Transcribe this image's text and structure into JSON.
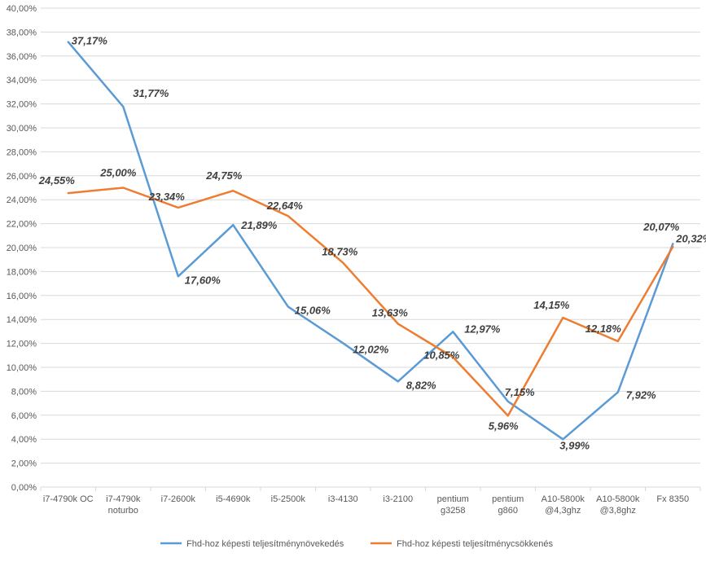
{
  "chart_data": {
    "type": "line",
    "categories": [
      [
        "i7-4790k OC"
      ],
      [
        "i7-4790k",
        "noturbo"
      ],
      [
        "i7-2600k"
      ],
      [
        "i5-4690k"
      ],
      [
        "i5-2500k"
      ],
      [
        "i3-4130"
      ],
      [
        "i3-2100"
      ],
      [
        "pentium",
        "g3258"
      ],
      [
        "pentium",
        "g860"
      ],
      [
        "A10-5800k",
        "@4,3ghz"
      ],
      [
        "A10-5800k",
        "@3,8ghz"
      ],
      [
        "Fx 8350"
      ]
    ],
    "series": [
      {
        "name": "Fhd-hoz képesti teljesítménynövekedés",
        "color": "#5B9BD5",
        "values": [
          37.17,
          31.77,
          17.6,
          21.89,
          15.06,
          12.02,
          8.82,
          12.97,
          7.15,
          3.99,
          7.92,
          20.32
        ],
        "labels": [
          "37,17%",
          "31,77%",
          "17,60%",
          "21,89%",
          "15,06%",
          "12,02%",
          "8,82%",
          "12,97%",
          "7,15%",
          "3,99%",
          "7,92%",
          "20,32%"
        ]
      },
      {
        "name": "Fhd-hoz képesti teljesítménycsökkenés",
        "color": "#ED7D31",
        "values": [
          24.55,
          25.0,
          23.34,
          24.75,
          22.64,
          18.73,
          13.63,
          10.85,
          5.96,
          14.15,
          12.18,
          20.07
        ],
        "labels": [
          "24,55%",
          "25,00%",
          "23,34%",
          "24,75%",
          "22,64%",
          "18,73%",
          "13,63%",
          "10,85%",
          "5,96%",
          "14,15%",
          "12,18%",
          "20,07%"
        ]
      }
    ],
    "y_ticks": [
      "0,00%",
      "2,00%",
      "4,00%",
      "6,00%",
      "8,00%",
      "10,00%",
      "12,00%",
      "14,00%",
      "16,00%",
      "18,00%",
      "20,00%",
      "22,00%",
      "24,00%",
      "26,00%",
      "28,00%",
      "30,00%",
      "32,00%",
      "34,00%",
      "36,00%",
      "38,00%",
      "40,00%"
    ],
    "ylim": [
      0,
      40
    ],
    "grid": true,
    "legend_position": "bottom"
  }
}
